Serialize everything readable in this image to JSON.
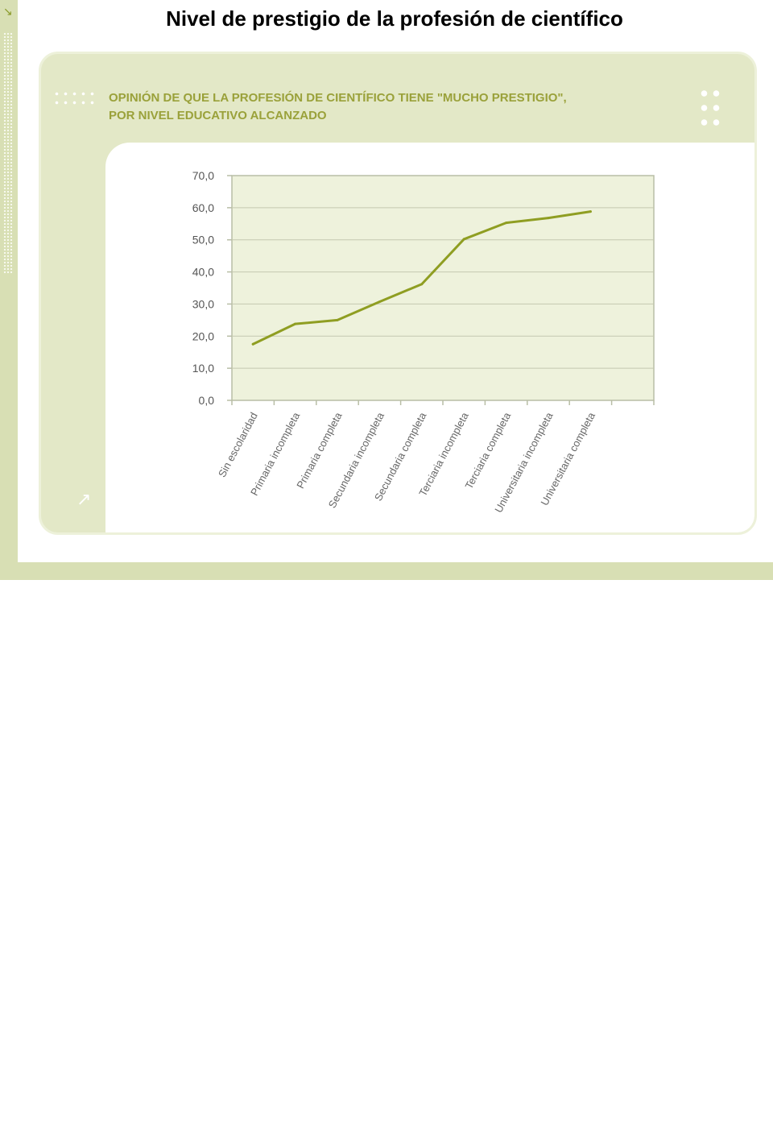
{
  "page": {
    "title": "Nivel de prestigio de la profesión de científico"
  },
  "panel": {
    "title_line1": "OPINIÓN DE QUE LA PROFESIÓN DE CIENTÍFICO TIENE \"MUCHO PRESTIGIO\",",
    "title_line2": "POR NIVEL EDUCATIVO ALCANZADO"
  },
  "colors": {
    "accent": "#9aa13a",
    "line": "#8f9e22",
    "plot_bg": "#eef2dc",
    "panel_bg": "#e3e8c7"
  },
  "chart_data": {
    "type": "line",
    "title": "OPINIÓN DE QUE LA PROFESIÓN DE CIENTÍFICO TIENE \"MUCHO PRESTIGIO\", POR NIVEL EDUCATIVO ALCANZADO",
    "xlabel": "",
    "ylabel": "",
    "categories": [
      "Sin escolaridad",
      "Primaria incompleta",
      "Primaria completa",
      "Secundaria incompleta",
      "Secundaria completa",
      "Terciaria incompleta",
      "Terciaria completa",
      "Universitaria incompleta",
      "Universitaria completa"
    ],
    "values": [
      17.5,
      23.8,
      25.0,
      30.7,
      36.2,
      50.2,
      55.3,
      56.8,
      58.8
    ],
    "ylim": [
      0,
      70
    ],
    "yticks": [
      "0,0",
      "10,0",
      "20,0",
      "30,0",
      "40,0",
      "50,0",
      "60,0",
      "70,0"
    ],
    "grid": true,
    "legend": "none"
  }
}
